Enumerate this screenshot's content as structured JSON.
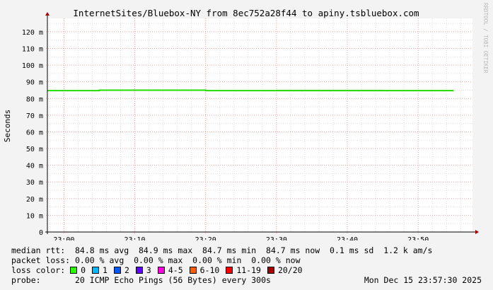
{
  "chart_data": {
    "type": "line",
    "title": "InternetSites/Bluebox-NY from 8ec752a28f44 to apiny.tsbluebox.com",
    "ylabel": "Seconds",
    "ylim": [
      0,
      128
    ],
    "yticks": [
      0,
      10,
      20,
      30,
      40,
      50,
      60,
      70,
      80,
      90,
      100,
      110,
      120
    ],
    "ytick_labels": [
      "0",
      "10 m",
      "20 m",
      "30 m",
      "40 m",
      "50 m",
      "60 m",
      "70 m",
      "80 m",
      "90 m",
      "100 m",
      "110 m",
      "120 m"
    ],
    "xlim": [
      "22:57:40",
      "23:57:40"
    ],
    "xtick_labels": [
      "23:00",
      "23:10",
      "23:20",
      "23:30",
      "23:40",
      "23:50"
    ],
    "grid": true,
    "watermark": "RRDTOOL / TOBI OETIKER",
    "series": [
      {
        "color": "#22dd00",
        "x": [
          "22:55",
          "23:00",
          "23:05",
          "23:10",
          "23:15",
          "23:20",
          "23:25",
          "23:30",
          "23:35",
          "23:40",
          "23:45",
          "23:50",
          "23:55"
        ],
        "values": [
          84.7,
          84.7,
          84.7,
          85.0,
          85.0,
          85.0,
          84.7,
          84.7,
          84.7,
          84.7,
          84.7,
          84.7,
          84.7
        ]
      }
    ],
    "smoke_max": [
      84.8,
      84.8,
      84.8,
      85.4,
      85.1,
      85.1,
      84.9,
      84.9,
      85.3,
      85.3,
      85.3,
      85.2,
      85.2
    ]
  },
  "legend": {
    "median_rtt": "median rtt:  84.8 ms avg  84.9 ms max  84.7 ms min  84.7 ms now  0.1 ms sd  1.2 k am/s",
    "packet_loss": "packet loss: 0.00 % avg  0.00 % max  0.00 % min  0.00 % now",
    "loss_color_label": "loss color: ",
    "loss_colors": [
      {
        "label": "0",
        "color": "#26ff00"
      },
      {
        "label": "1",
        "color": "#00b8ff"
      },
      {
        "label": "2",
        "color": "#0059ff"
      },
      {
        "label": "3",
        "color": "#5e00ff"
      },
      {
        "label": "4-5",
        "color": "#ff00e1"
      },
      {
        "label": "6-10",
        "color": "#ff5e00"
      },
      {
        "label": "11-19",
        "color": "#ff0000"
      },
      {
        "label": "20/20",
        "color": "#a10000"
      }
    ],
    "probe": "probe:       20 ICMP Echo Pings (56 Bytes) every 300s",
    "timestamp": "Mon Dec 15 23:57:30 2025"
  }
}
